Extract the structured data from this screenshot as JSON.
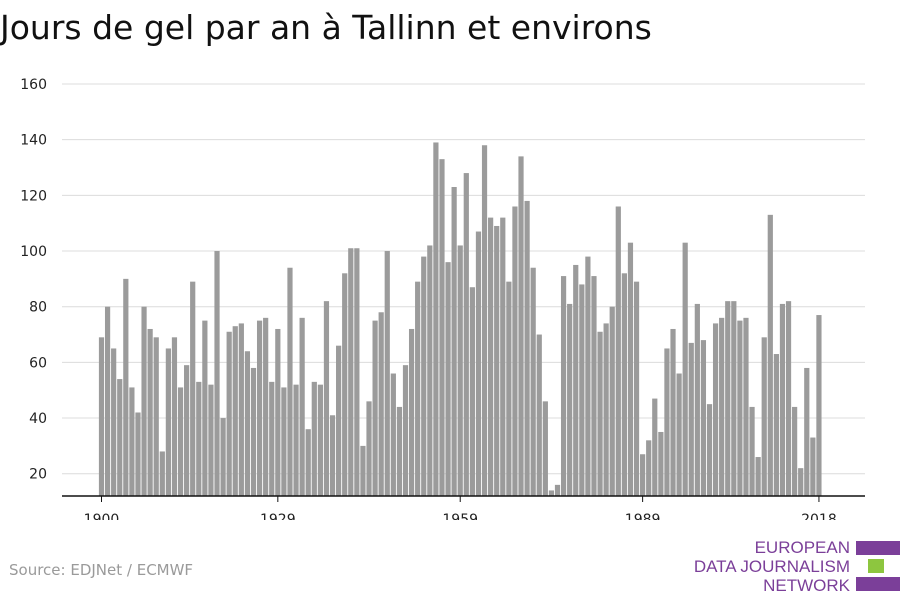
{
  "chart_data": {
    "type": "bar",
    "title": "Jours de gel par an à Tallinn et environs",
    "xlabel": "",
    "ylabel": "",
    "x_start": 1900,
    "x_ticks": [
      "1900",
      "1929",
      "1959",
      "1989",
      "2018"
    ],
    "y_ticks": [
      "20",
      "40",
      "60",
      "80",
      "100",
      "120",
      "140",
      "160"
    ],
    "ylim": [
      12,
      160
    ],
    "grid": true,
    "bar_color": "#9b9b9b",
    "values": [
      69,
      80,
      65,
      54,
      90,
      51,
      42,
      80,
      72,
      69,
      28,
      65,
      69,
      51,
      59,
      89,
      53,
      75,
      52,
      100,
      40,
      71,
      73,
      74,
      64,
      58,
      75,
      76,
      53,
      72,
      51,
      94,
      52,
      76,
      36,
      53,
      52,
      82,
      41,
      66,
      92,
      101,
      101,
      30,
      46,
      75,
      78,
      100,
      56,
      44,
      59,
      72,
      89,
      98,
      102,
      139,
      133,
      96,
      123,
      102,
      128,
      87,
      107,
      138,
      112,
      109,
      112,
      89,
      116,
      134,
      118,
      94,
      70,
      46,
      14,
      16,
      91,
      81,
      95,
      88,
      98,
      91,
      71,
      74,
      80,
      116,
      92,
      103,
      89,
      27,
      32,
      47,
      35,
      65,
      72,
      56,
      103,
      67,
      81,
      68,
      45,
      74,
      76,
      82,
      82,
      75,
      76,
      44,
      26,
      69,
      113,
      63,
      81,
      82,
      44,
      22,
      58,
      33,
      77
    ]
  },
  "source": "Source: EDJNet / ECMWF",
  "logo": {
    "line1": "EUROPEAN",
    "line2": "DATA JOURNALISM",
    "line3": "NETWORK",
    "purple": "#7b3f99",
    "green": "#8dc63f"
  }
}
